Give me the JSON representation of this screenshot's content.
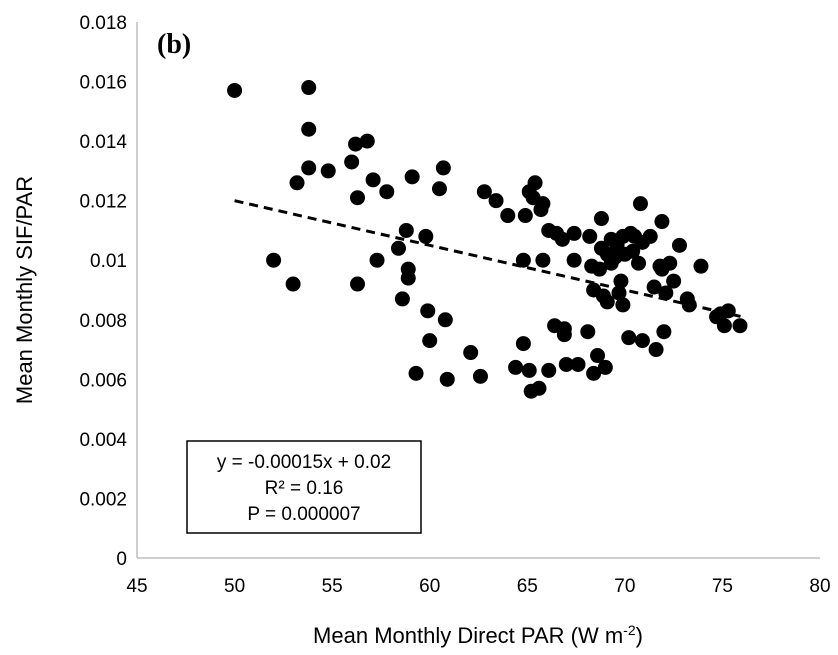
{
  "chart_data": {
    "type": "scatter",
    "panel_label": "(b)",
    "xlabel": "Mean Monthly Direct PAR (W m",
    "xlabel_sup": "-2",
    "xlabel_end": ")",
    "ylabel": "Mean Monthly SIF/PAR",
    "xlim": [
      45,
      80
    ],
    "ylim": [
      0,
      0.018
    ],
    "x_ticks": [
      "45",
      "50",
      "55",
      "60",
      "65",
      "70",
      "75",
      "80"
    ],
    "y_ticks": [
      "0",
      "0.002",
      "0.004",
      "0.006",
      "0.008",
      "0.01",
      "0.012",
      "0.014",
      "0.016",
      "0.018"
    ],
    "grid": false,
    "trendline": {
      "style": "dashed",
      "slope": -0.00015,
      "intercept": 0.0195,
      "x_range": [
        50,
        76
      ]
    },
    "stats": {
      "equation": "y = -0.00015x + 0.02",
      "r2": "R² = 0.16",
      "p": "P = 0.000007"
    },
    "points": [
      [
        50,
        0.0157
      ],
      [
        52,
        0.01
      ],
      [
        53,
        0.0092
      ],
      [
        53.2,
        0.0126
      ],
      [
        53.8,
        0.0158
      ],
      [
        53.8,
        0.0144
      ],
      [
        53.8,
        0.0131
      ],
      [
        54.8,
        0.013
      ],
      [
        56,
        0.0133
      ],
      [
        56.2,
        0.0139
      ],
      [
        56.3,
        0.0121
      ],
      [
        56.3,
        0.0092
      ],
      [
        56.8,
        0.014
      ],
      [
        57.1,
        0.0127
      ],
      [
        57.3,
        0.01
      ],
      [
        57.8,
        0.0123
      ],
      [
        58.4,
        0.0104
      ],
      [
        58.6,
        0.0087
      ],
      [
        58.8,
        0.011
      ],
      [
        58.9,
        0.0097
      ],
      [
        58.9,
        0.0094
      ],
      [
        59.1,
        0.0128
      ],
      [
        59.3,
        0.0062
      ],
      [
        59.8,
        0.0108
      ],
      [
        59.9,
        0.0083
      ],
      [
        60,
        0.0073
      ],
      [
        60.5,
        0.0124
      ],
      [
        60.7,
        0.0131
      ],
      [
        60.8,
        0.008
      ],
      [
        60.9,
        0.006
      ],
      [
        62.1,
        0.0069
      ],
      [
        62.6,
        0.0061
      ],
      [
        62.8,
        0.0123
      ],
      [
        63.4,
        0.012
      ],
      [
        64,
        0.0115
      ],
      [
        64.4,
        0.0064
      ],
      [
        64.8,
        0.0072
      ],
      [
        64.8,
        0.01
      ],
      [
        64.9,
        0.0115
      ],
      [
        65.1,
        0.0063
      ],
      [
        65.1,
        0.0123
      ],
      [
        65.2,
        0.0056
      ],
      [
        65.3,
        0.0121
      ],
      [
        65.4,
        0.0126
      ],
      [
        65.6,
        0.0057
      ],
      [
        65.7,
        0.0117
      ],
      [
        65.8,
        0.0119
      ],
      [
        65.8,
        0.01
      ],
      [
        66.1,
        0.0063
      ],
      [
        66.1,
        0.011
      ],
      [
        66.4,
        0.0078
      ],
      [
        66.5,
        0.0109
      ],
      [
        66.8,
        0.0107
      ],
      [
        66.9,
        0.0077
      ],
      [
        66.9,
        0.0075
      ],
      [
        67,
        0.0065
      ],
      [
        67.4,
        0.0109
      ],
      [
        67.4,
        0.01
      ],
      [
        67.6,
        0.0065
      ],
      [
        68.1,
        0.0076
      ],
      [
        68.2,
        0.0108
      ],
      [
        68.3,
        0.0098
      ],
      [
        68.4,
        0.009
      ],
      [
        68.4,
        0.0062
      ],
      [
        68.6,
        0.0068
      ],
      [
        68.7,
        0.0097
      ],
      [
        68.8,
        0.0114
      ],
      [
        68.8,
        0.0104
      ],
      [
        68.9,
        0.0088
      ],
      [
        69,
        0.0064
      ],
      [
        69.1,
        0.0086
      ],
      [
        69.1,
        0.0102
      ],
      [
        69.3,
        0.0107
      ],
      [
        69.3,
        0.0099
      ],
      [
        69.5,
        0.0101
      ],
      [
        69.6,
        0.0105
      ],
      [
        69.7,
        0.0089
      ],
      [
        69.8,
        0.0093
      ],
      [
        69.9,
        0.0085
      ],
      [
        69.9,
        0.0108
      ],
      [
        70,
        0.0102
      ],
      [
        70.2,
        0.0074
      ],
      [
        70.3,
        0.0109
      ],
      [
        70.4,
        0.0103
      ],
      [
        70.5,
        0.0108
      ],
      [
        70.7,
        0.0099
      ],
      [
        70.8,
        0.0119
      ],
      [
        70.9,
        0.0106
      ],
      [
        70.9,
        0.0073
      ],
      [
        71.3,
        0.0108
      ],
      [
        71.5,
        0.0091
      ],
      [
        71.6,
        0.007
      ],
      [
        71.8,
        0.0098
      ],
      [
        71.9,
        0.0113
      ],
      [
        71.9,
        0.0097
      ],
      [
        72,
        0.0076
      ],
      [
        72.1,
        0.0089
      ],
      [
        72.3,
        0.0099
      ],
      [
        72.5,
        0.0093
      ],
      [
        72.8,
        0.0105
      ],
      [
        73.2,
        0.0087
      ],
      [
        73.3,
        0.0085
      ],
      [
        73.9,
        0.0098
      ],
      [
        74.7,
        0.0081
      ],
      [
        74.9,
        0.0082
      ],
      [
        75.1,
        0.0078
      ],
      [
        75.3,
        0.0083
      ],
      [
        75.9,
        0.0078
      ]
    ]
  }
}
